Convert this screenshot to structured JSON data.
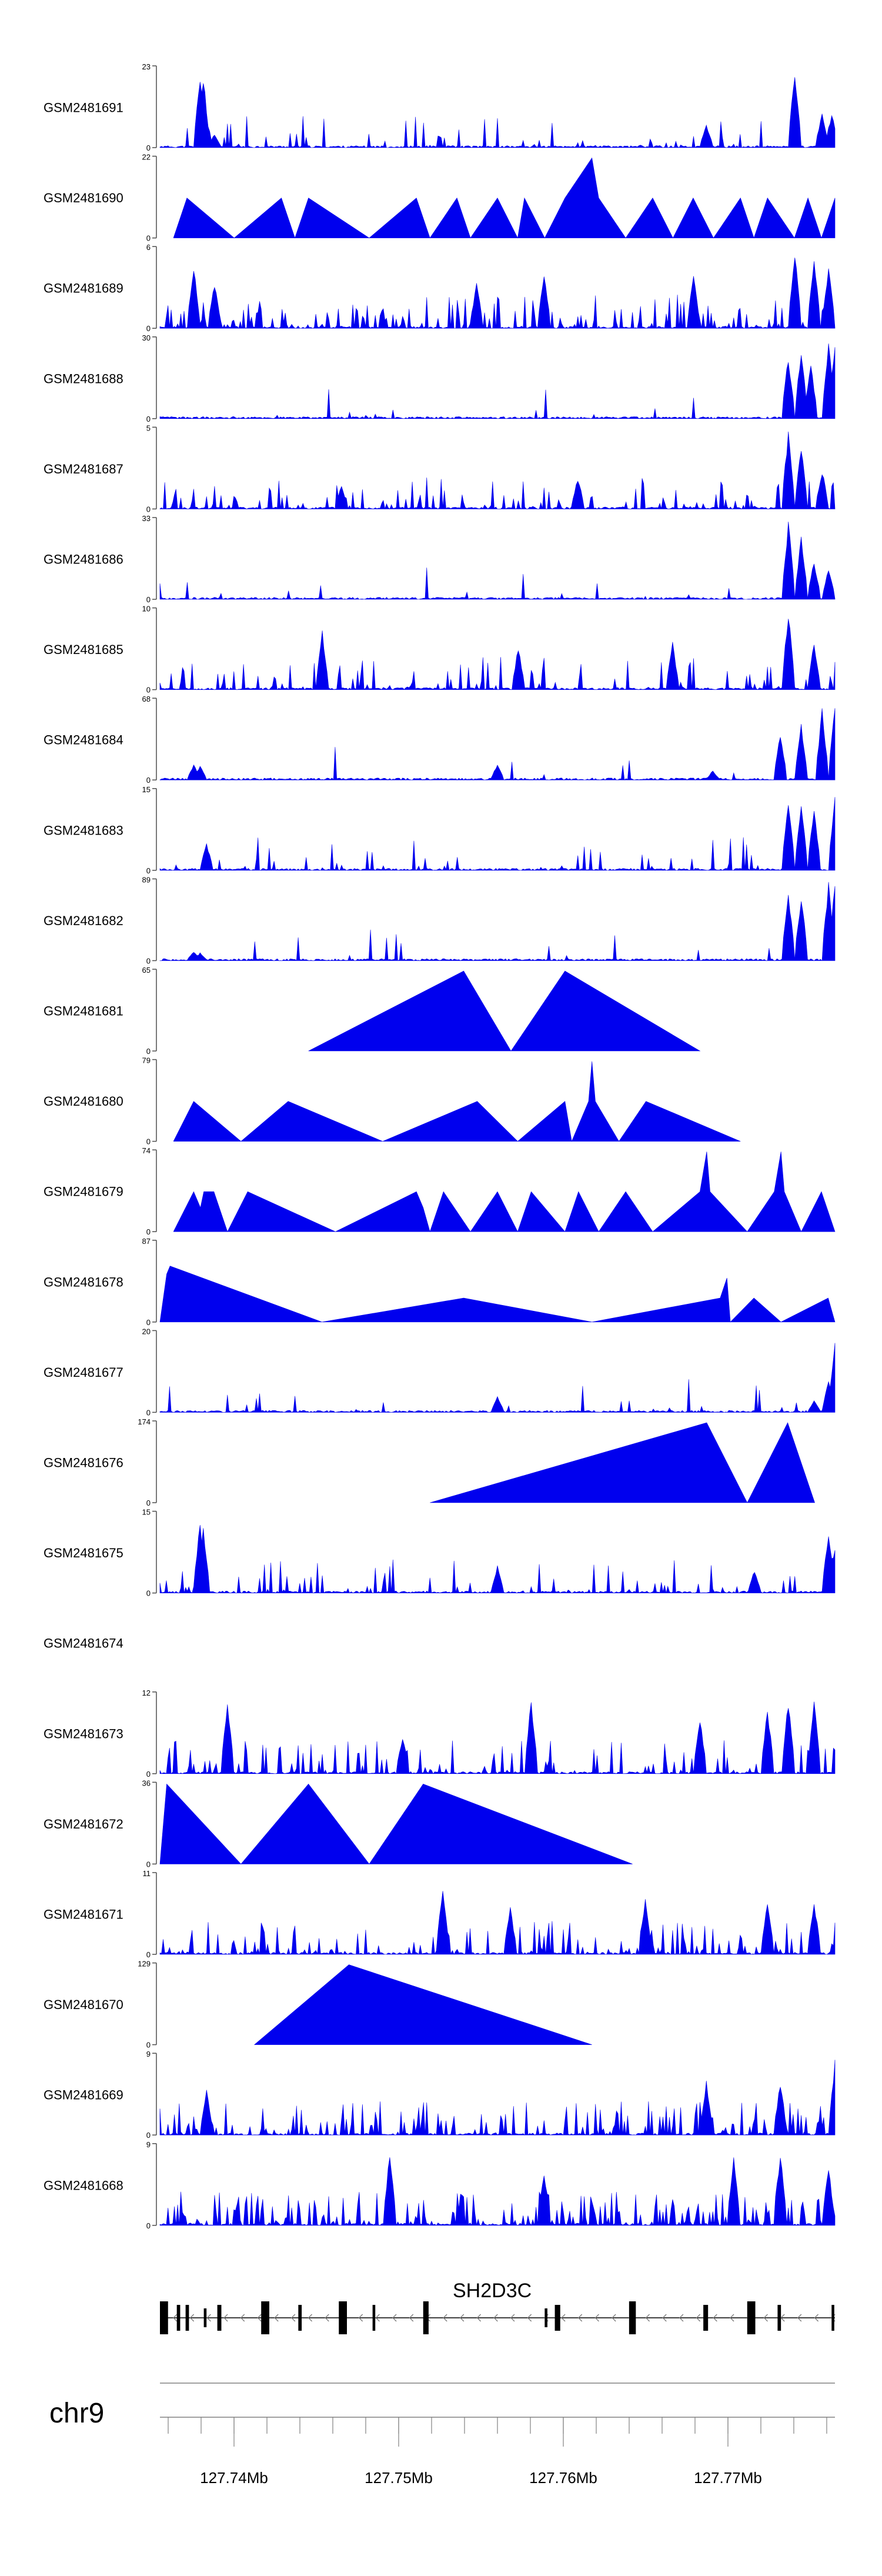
{
  "chart_data": {
    "type": "area",
    "title": "",
    "series": [
      {
        "name": "GSM2481691",
        "ymax": 23,
        "pattern": "dense",
        "seed": 11,
        "density": 0.18,
        "peaks": [
          [
            0.06,
            0.95
          ],
          [
            0.065,
            0.9
          ],
          [
            0.08,
            0.18
          ],
          [
            0.81,
            0.3
          ],
          [
            0.94,
            1.0
          ],
          [
            0.98,
            0.45
          ],
          [
            0.995,
            0.45
          ]
        ]
      },
      {
        "name": "GSM2481690",
        "ymax": 22,
        "pattern": "tri",
        "points": [
          [
            0.02,
            0
          ],
          [
            0.04,
            0.5
          ],
          [
            0.11,
            0
          ],
          [
            0.18,
            0.5
          ],
          [
            0.2,
            0
          ],
          [
            0.22,
            0.5
          ],
          [
            0.31,
            0
          ],
          [
            0.38,
            0.5
          ],
          [
            0.4,
            0
          ],
          [
            0.44,
            0.5
          ],
          [
            0.46,
            0
          ],
          [
            0.5,
            0.5
          ],
          [
            0.53,
            0
          ],
          [
            0.54,
            0.5
          ],
          [
            0.57,
            0
          ],
          [
            0.6,
            0.5
          ],
          [
            0.64,
            1.0
          ],
          [
            0.65,
            0.5
          ],
          [
            0.69,
            0
          ],
          [
            0.73,
            0.5
          ],
          [
            0.76,
            0
          ],
          [
            0.79,
            0.5
          ],
          [
            0.82,
            0
          ],
          [
            0.86,
            0.5
          ],
          [
            0.88,
            0
          ],
          [
            0.9,
            0.5
          ],
          [
            0.94,
            0
          ],
          [
            0.96,
            0.5
          ],
          [
            0.98,
            0
          ],
          [
            1,
            0.5
          ]
        ]
      },
      {
        "name": "GSM2481689",
        "ymax": 6,
        "pattern": "dense",
        "seed": 23,
        "density": 0.38,
        "peaks": [
          [
            0.05,
            0.8
          ],
          [
            0.08,
            0.6
          ],
          [
            0.47,
            0.6
          ],
          [
            0.57,
            0.7
          ],
          [
            0.79,
            0.7
          ],
          [
            0.94,
            1.0
          ],
          [
            0.97,
            0.9
          ],
          [
            0.99,
            0.8
          ]
        ]
      },
      {
        "name": "GSM2481688",
        "ymax": 30,
        "pattern": "dense",
        "seed": 37,
        "density": 0.04,
        "peaks": [
          [
            0.93,
            0.8
          ],
          [
            0.95,
            0.9
          ],
          [
            0.965,
            0.7
          ],
          [
            0.99,
            0.98
          ],
          [
            1.0,
            0.95
          ]
        ]
      },
      {
        "name": "GSM2481687",
        "ymax": 5,
        "pattern": "dense",
        "seed": 41,
        "density": 0.36,
        "peaks": [
          [
            0.27,
            0.3
          ],
          [
            0.62,
            0.4
          ],
          [
            0.93,
            1.0
          ],
          [
            0.95,
            0.8
          ],
          [
            0.98,
            0.5
          ]
        ]
      },
      {
        "name": "GSM2481686",
        "ymax": 33,
        "pattern": "dense",
        "seed": 53,
        "density": 0.04,
        "peaks": [
          [
            0.93,
            1.0
          ],
          [
            0.95,
            0.8
          ],
          [
            0.97,
            0.5
          ],
          [
            0.99,
            0.4
          ]
        ]
      },
      {
        "name": "GSM2481685",
        "ymax": 10,
        "pattern": "dense",
        "seed": 59,
        "density": 0.28,
        "peaks": [
          [
            0.24,
            0.75
          ],
          [
            0.53,
            0.55
          ],
          [
            0.76,
            0.6
          ],
          [
            0.93,
            1.0
          ],
          [
            0.97,
            0.6
          ]
        ]
      },
      {
        "name": "GSM2481684",
        "ymax": 68,
        "pattern": "dense",
        "seed": 61,
        "density": 0.03,
        "peaks": [
          [
            0.05,
            0.2
          ],
          [
            0.06,
            0.18
          ],
          [
            0.5,
            0.2
          ],
          [
            0.82,
            0.12
          ],
          [
            0.92,
            0.6
          ],
          [
            0.95,
            0.7
          ],
          [
            0.98,
            0.9
          ],
          [
            1.0,
            1.0
          ]
        ]
      },
      {
        "name": "GSM2481683",
        "ymax": 15,
        "pattern": "dense",
        "seed": 67,
        "density": 0.12,
        "peaks": [
          [
            0.07,
            0.35
          ],
          [
            0.93,
            0.95
          ],
          [
            0.95,
            0.9
          ],
          [
            0.97,
            0.8
          ],
          [
            1.0,
            1.0
          ]
        ]
      },
      {
        "name": "GSM2481682",
        "ymax": 89,
        "pattern": "dense",
        "seed": 71,
        "density": 0.03,
        "peaks": [
          [
            0.05,
            0.12
          ],
          [
            0.06,
            0.1
          ],
          [
            0.93,
            0.9
          ],
          [
            0.95,
            0.85
          ],
          [
            0.99,
            1.0
          ],
          [
            1.0,
            0.98
          ]
        ]
      },
      {
        "name": "GSM2481681",
        "ymax": 65,
        "pattern": "tri",
        "points": [
          [
            0.22,
            0
          ],
          [
            0.45,
            1.0
          ],
          [
            0.52,
            0
          ],
          [
            0.6,
            1.0
          ],
          [
            0.8,
            0
          ]
        ]
      },
      {
        "name": "GSM2481680",
        "ymax": 79,
        "pattern": "tri",
        "points": [
          [
            0.02,
            0
          ],
          [
            0.05,
            0.5
          ],
          [
            0.12,
            0
          ],
          [
            0.19,
            0.5
          ],
          [
            0.33,
            0
          ],
          [
            0.47,
            0.5
          ],
          [
            0.53,
            0
          ],
          [
            0.6,
            0.5
          ],
          [
            0.61,
            0
          ],
          [
            0.635,
            0.5
          ],
          [
            0.64,
            1.0
          ],
          [
            0.645,
            0.5
          ],
          [
            0.68,
            0
          ],
          [
            0.72,
            0.5
          ],
          [
            0.86,
            0
          ]
        ]
      },
      {
        "name": "GSM2481679",
        "ymax": 74,
        "pattern": "tri",
        "points": [
          [
            0.02,
            0
          ],
          [
            0.05,
            0.5
          ],
          [
            0.06,
            0.3
          ],
          [
            0.065,
            0.5
          ],
          [
            0.08,
            0.5
          ],
          [
            0.1,
            0
          ],
          [
            0.13,
            0.5
          ],
          [
            0.26,
            0
          ],
          [
            0.38,
            0.5
          ],
          [
            0.39,
            0.3
          ],
          [
            0.4,
            0
          ],
          [
            0.42,
            0.5
          ],
          [
            0.46,
            0
          ],
          [
            0.5,
            0.5
          ],
          [
            0.53,
            0
          ],
          [
            0.55,
            0.5
          ],
          [
            0.6,
            0
          ],
          [
            0.62,
            0.5
          ],
          [
            0.65,
            0
          ],
          [
            0.69,
            0.5
          ],
          [
            0.73,
            0
          ],
          [
            0.8,
            0.5
          ],
          [
            0.81,
            1.0
          ],
          [
            0.815,
            0.5
          ],
          [
            0.87,
            0
          ],
          [
            0.91,
            0.5
          ],
          [
            0.92,
            1.0
          ],
          [
            0.925,
            0.5
          ],
          [
            0.95,
            0
          ],
          [
            0.98,
            0.5
          ],
          [
            1,
            0
          ]
        ]
      },
      {
        "name": "GSM2481678",
        "ymax": 87,
        "pattern": "tri",
        "points": [
          [
            0.0,
            0
          ],
          [
            0.01,
            0.6
          ],
          [
            0.015,
            0.7
          ],
          [
            0.24,
            0
          ],
          [
            0.45,
            0.3
          ],
          [
            0.64,
            0
          ],
          [
            0.83,
            0.3
          ],
          [
            0.84,
            0.55
          ],
          [
            0.845,
            0
          ],
          [
            0.88,
            0.3
          ],
          [
            0.92,
            0
          ],
          [
            0.99,
            0.3
          ],
          [
            1,
            0
          ]
        ]
      },
      {
        "name": "GSM2481677",
        "ymax": 20,
        "pattern": "dense",
        "seed": 79,
        "density": 0.08,
        "peaks": [
          [
            0.5,
            0.2
          ],
          [
            0.97,
            0.15
          ],
          [
            0.99,
            0.4
          ],
          [
            1.0,
            0.95
          ]
        ]
      },
      {
        "name": "GSM2481676",
        "ymax": 174,
        "pattern": "tri",
        "points": [
          [
            0.4,
            0
          ],
          [
            0.81,
            1.0
          ],
          [
            0.87,
            0
          ],
          [
            0.93,
            1.0
          ],
          [
            0.97,
            0
          ]
        ]
      },
      {
        "name": "GSM2481675",
        "ymax": 15,
        "pattern": "dense",
        "seed": 83,
        "density": 0.2,
        "peaks": [
          [
            0.06,
            0.95
          ],
          [
            0.065,
            0.85
          ],
          [
            0.5,
            0.35
          ],
          [
            0.88,
            0.3
          ],
          [
            0.99,
            0.8
          ],
          [
            1.0,
            0.6
          ]
        ]
      },
      {
        "name": "GSM2481674",
        "ymax": null,
        "pattern": "empty"
      },
      {
        "name": "GSM2481673",
        "ymax": 12,
        "pattern": "dense",
        "seed": 89,
        "density": 0.3,
        "peaks": [
          [
            0.1,
            0.95
          ],
          [
            0.36,
            0.5
          ],
          [
            0.55,
            0.95
          ],
          [
            0.8,
            0.75
          ],
          [
            0.9,
            0.85
          ],
          [
            0.93,
            0.95
          ],
          [
            0.97,
            0.95
          ]
        ]
      },
      {
        "name": "GSM2481672",
        "ymax": 36,
        "pattern": "tri",
        "points": [
          [
            0.0,
            0
          ],
          [
            0.01,
            1.0
          ],
          [
            0.12,
            0
          ],
          [
            0.22,
            1.0
          ],
          [
            0.31,
            0
          ],
          [
            0.39,
            1.0
          ],
          [
            0.7,
            0
          ]
        ]
      },
      {
        "name": "GSM2481671",
        "ymax": 11,
        "pattern": "dense",
        "seed": 97,
        "density": 0.4,
        "peaks": [
          [
            0.42,
            0.9
          ],
          [
            0.52,
            0.6
          ],
          [
            0.72,
            0.7
          ],
          [
            0.9,
            0.7
          ],
          [
            0.97,
            0.7
          ]
        ]
      },
      {
        "name": "GSM2481670",
        "ymax": 129,
        "pattern": "tri",
        "points": [
          [
            0.14,
            0
          ],
          [
            0.28,
            1.0
          ],
          [
            0.64,
            0
          ]
        ]
      },
      {
        "name": "GSM2481669",
        "ymax": 9,
        "pattern": "dense",
        "seed": 101,
        "density": 0.45,
        "peaks": [
          [
            0.07,
            0.6
          ],
          [
            0.81,
            0.7
          ],
          [
            0.92,
            0.7
          ],
          [
            1.0,
            0.95
          ]
        ]
      },
      {
        "name": "GSM2481668",
        "ymax": 9,
        "pattern": "dense",
        "seed": 103,
        "density": 0.55,
        "peaks": [
          [
            0.34,
            0.95
          ],
          [
            0.57,
            0.7
          ],
          [
            0.85,
            0.9
          ],
          [
            0.92,
            0.95
          ],
          [
            0.99,
            0.75
          ]
        ]
      }
    ],
    "gene": {
      "name": "SH2D3C",
      "strand": "-",
      "exons": [
        [
          0.0,
          0.012,
          "large"
        ],
        [
          0.025,
          0.005,
          "medium"
        ],
        [
          0.038,
          0.005,
          "medium"
        ],
        [
          0.065,
          0.004,
          "small"
        ],
        [
          0.085,
          0.006,
          "medium"
        ],
        [
          0.15,
          0.012,
          "large"
        ],
        [
          0.205,
          0.005,
          "medium"
        ],
        [
          0.265,
          0.012,
          "large"
        ],
        [
          0.315,
          0.004,
          "medium"
        ],
        [
          0.39,
          0.008,
          "large"
        ],
        [
          0.57,
          0.004,
          "small"
        ],
        [
          0.585,
          0.008,
          "medium"
        ],
        [
          0.695,
          0.01,
          "large"
        ],
        [
          0.805,
          0.007,
          "medium"
        ],
        [
          0.87,
          0.012,
          "large"
        ],
        [
          0.915,
          0.005,
          "medium"
        ],
        [
          0.995,
          0.004,
          "medium"
        ]
      ]
    },
    "axis": {
      "chromosome": "chr9",
      "xlim": [
        127.7355,
        127.7765
      ],
      "tick_labels": [
        "127.74Mb",
        "127.75Mb",
        "127.76Mb",
        "127.77Mb"
      ],
      "tick_values": [
        127.74,
        127.75,
        127.76,
        127.77
      ],
      "minor_step": 0.002
    },
    "colors": {
      "fill": "#0000ee",
      "axis": "#4d4d4d",
      "text": "#000000"
    }
  }
}
